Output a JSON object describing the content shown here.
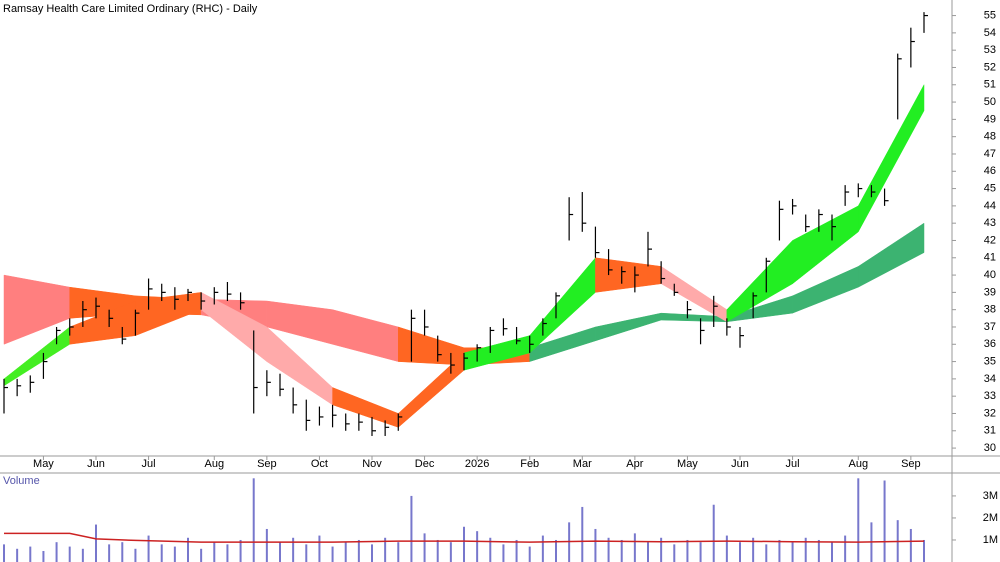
{
  "chart_data": [
    {
      "type": "ohlc",
      "title": "Ramsay Health Care Limited Ordinary (RHC) - Daily",
      "categories": [
        null,
        null,
        null,
        "May",
        null,
        null,
        null,
        "Jun",
        null,
        null,
        null,
        "Jul",
        null,
        null,
        null,
        null,
        "Aug",
        null,
        null,
        null,
        "Sep",
        null,
        null,
        null,
        "Oct",
        null,
        null,
        null,
        "Nov",
        null,
        null,
        null,
        "Dec",
        null,
        null,
        null,
        "2026",
        null,
        null,
        null,
        "Feb",
        null,
        null,
        null,
        "Mar",
        null,
        null,
        null,
        "Apr",
        null,
        null,
        null,
        "May",
        null,
        null,
        null,
        "Jun",
        null,
        null,
        null,
        "Jul",
        null,
        null,
        null,
        null,
        "Aug",
        null,
        null,
        null,
        "Sep",
        null
      ],
      "low": [
        32,
        33,
        33.2,
        34,
        36,
        36.5,
        37,
        37.5,
        37,
        36,
        36.5,
        38,
        38.5,
        38,
        38.5,
        38,
        38.3,
        38.5,
        38,
        32,
        33,
        33,
        32,
        31,
        31.3,
        31.2,
        31,
        31,
        30.7,
        30.7,
        31,
        35,
        36.5,
        35,
        34.3,
        34.5,
        35,
        35.5,
        36.5,
        36,
        35.5,
        36.5,
        37.5,
        42,
        42.5,
        41,
        40,
        39.5,
        39,
        40.5,
        39.5,
        38.8,
        37.5,
        36,
        37,
        36.5,
        35.8,
        37.5,
        39,
        42,
        43.5,
        42.5,
        42.5,
        42,
        44,
        44.5,
        44.5,
        44,
        49,
        52,
        54
      ],
      "high": [
        34,
        34,
        34.2,
        35.5,
        37,
        37.5,
        38.5,
        38.7,
        38,
        37,
        38,
        39.8,
        39.5,
        39.3,
        39.2,
        39,
        39.3,
        39.6,
        39,
        36.8,
        34.5,
        34.3,
        33.5,
        32.8,
        32.4,
        32.5,
        32,
        32,
        31.8,
        31.6,
        32,
        38,
        38,
        36.5,
        35.5,
        35.5,
        36,
        37,
        37.5,
        37,
        36.5,
        37.5,
        39,
        44.5,
        44.8,
        42.8,
        41.5,
        40.5,
        40.5,
        42.5,
        40.8,
        39.5,
        38.5,
        37.5,
        38.8,
        37.5,
        37,
        39,
        41,
        44.3,
        44.4,
        43.5,
        43.8,
        43.5,
        45.2,
        45.3,
        45.2,
        45,
        52.8,
        54.3,
        55.2
      ],
      "close": [
        33.5,
        33.6,
        33.8,
        35,
        36.8,
        37,
        38,
        38.2,
        37.5,
        36.3,
        37.8,
        39.2,
        39,
        38.6,
        39,
        38.5,
        39,
        38.9,
        38.4,
        33.5,
        33.8,
        33.4,
        32.5,
        31.6,
        31.8,
        31.9,
        31.4,
        31.5,
        31,
        31.2,
        31.8,
        37.5,
        37,
        35.4,
        34.8,
        35.2,
        35.8,
        36.8,
        36.9,
        36.2,
        36,
        37.2,
        38.8,
        43.5,
        43,
        41.3,
        40.3,
        40.2,
        40,
        41.5,
        39.8,
        39,
        38,
        36.8,
        38.2,
        37,
        36.5,
        38.8,
        40.8,
        43.8,
        44,
        42.8,
        43.5,
        42.8,
        44.8,
        45,
        44.8,
        44.3,
        52.5,
        53.5,
        55
      ],
      "bands": [
        {
          "x": [
            0,
            5,
            10,
            15,
            20,
            25,
            30,
            35,
            40,
            45,
            50,
            55,
            60,
            65,
            70
          ],
          "upper": [
            40,
            39.3,
            38.8,
            38.6,
            38.5,
            38,
            37,
            35.8,
            35.8,
            37,
            37.8,
            37.6,
            38.8,
            40.5,
            43
          ],
          "lower": [
            36,
            37.5,
            37.8,
            37.7,
            37,
            36,
            35,
            34.8,
            35,
            36.2,
            37.4,
            37.3,
            37.8,
            39.3,
            41.3
          ],
          "colors": [
            "#ff7f7f",
            "#ff6622",
            "#ff6622",
            "#ff7f7f",
            "#ff7f7f",
            "#ff7f7f",
            "#ff6622",
            "#ff6622",
            "#3cb371",
            "#3cb371",
            "#3cb371",
            "#3cb371",
            "#3cb371",
            "#3cb371"
          ]
        },
        {
          "x": [
            0,
            5,
            10,
            15,
            20,
            25,
            30,
            35,
            40,
            45,
            50,
            55,
            60,
            65,
            70
          ],
          "upper": [
            34,
            37,
            38.5,
            39,
            37,
            33.5,
            32,
            35.5,
            36.5,
            41,
            40.5,
            38,
            42,
            44,
            51
          ],
          "lower": [
            33.6,
            36,
            36.5,
            38,
            35,
            32.5,
            31.2,
            34.5,
            35.5,
            39,
            39.5,
            37.3,
            39.5,
            42.5,
            49.5
          ],
          "colors": [
            "#44ee22",
            "#ff6622",
            "#ff6622",
            "#ffaaaa",
            "#ffaaaa",
            "#ff6622",
            "#ff6622",
            "#22ee22",
            "#22ee22",
            "#ff6622",
            "#ffaaaa",
            "#22ee22",
            "#22ee22",
            "#22ee22"
          ]
        }
      ],
      "ylim": [
        29.6,
        55.9
      ],
      "yticks": [
        30,
        31,
        32,
        33,
        34,
        35,
        36,
        37,
        38,
        39,
        40,
        41,
        42,
        43,
        44,
        45,
        46,
        47,
        48,
        49,
        50,
        51,
        52,
        53,
        54,
        55
      ]
    },
    {
      "type": "bar",
      "title": "Volume",
      "color": "#7777cc",
      "values": [
        800000,
        600000,
        700000,
        500000,
        900000,
        700000,
        600000,
        1700000,
        800000,
        900000,
        600000,
        1200000,
        800000,
        700000,
        1100000,
        600000,
        900000,
        800000,
        1000000,
        3800000,
        1500000,
        900000,
        1100000,
        800000,
        1200000,
        700000,
        900000,
        1000000,
        800000,
        1100000,
        900000,
        3000000,
        1300000,
        1000000,
        900000,
        1600000,
        1400000,
        1100000,
        800000,
        1000000,
        700000,
        1200000,
        1000000,
        1800000,
        2500000,
        1500000,
        1100000,
        1000000,
        1300000,
        900000,
        1100000,
        800000,
        1000000,
        900000,
        2600000,
        1200000,
        900000,
        1100000,
        800000,
        1000000,
        900000,
        1100000,
        1000000,
        900000,
        1200000,
        3800000,
        1800000,
        3700000,
        1900000,
        1500000,
        1000000
      ],
      "average": {
        "color": "#cc2222",
        "x": [
          0,
          5,
          7,
          10,
          15,
          20,
          25,
          30,
          35,
          40,
          45,
          50,
          55,
          60,
          65,
          70
        ],
        "values": [
          1300000,
          1300000,
          1050000,
          980000,
          900000,
          900000,
          900000,
          950000,
          950000,
          900000,
          950000,
          920000,
          950000,
          920000,
          900000,
          950000
        ]
      },
      "ylim": [
        0,
        3950000
      ],
      "yticks": [
        {
          "value": 1000000,
          "label": "1M"
        },
        {
          "value": 2000000,
          "label": "2M"
        },
        {
          "value": 3000000,
          "label": "3M"
        }
      ]
    }
  ]
}
